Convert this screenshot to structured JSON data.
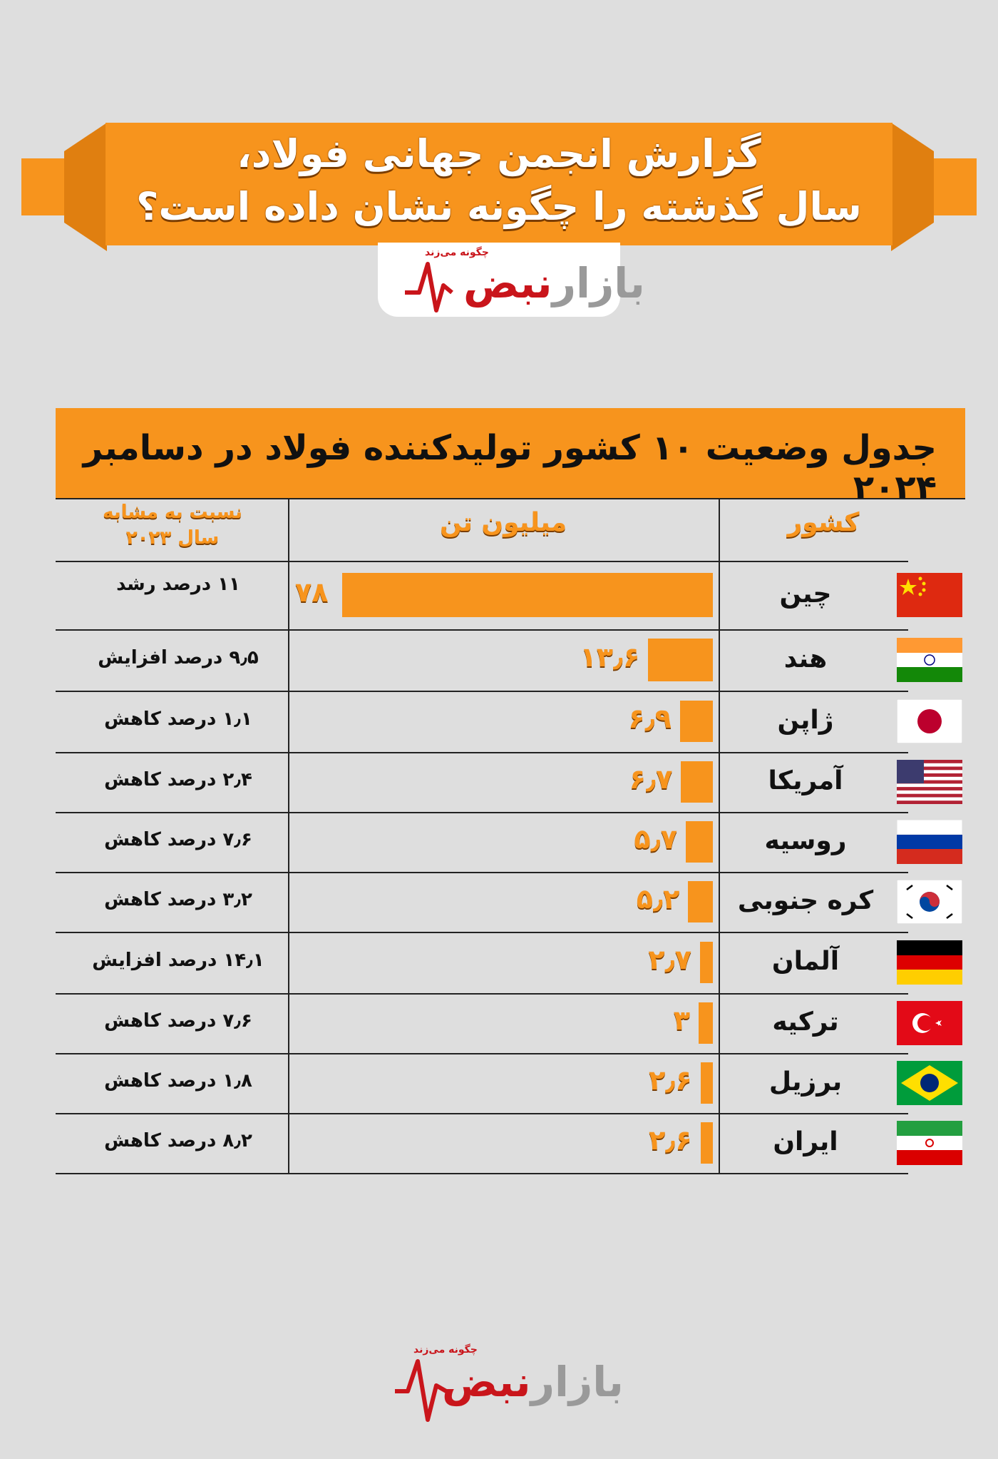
{
  "header": {
    "title_line1": "گزارش انجمن جهانی فولاد،",
    "title_line2": "سال گذشته را چگونه نشان داده است؟"
  },
  "brand": {
    "tagline": "چگونه می‌زند",
    "name_red": "نبض",
    "name_gray": "بازار"
  },
  "table": {
    "title": "جدول وضعیت ۱۰ کشور تولیدکننده فولاد در دسامبر ۲۰۲۴",
    "col_country": "کشور",
    "col_million": "میلیون تن",
    "col_change_line1": "نسبت به مشابه",
    "col_change_line2": "سال ۲۰۲۳"
  },
  "colors": {
    "accent": "#f7941d",
    "background": "#dedede",
    "brand_red": "#c9151b"
  },
  "chart_data": {
    "type": "bar",
    "title": "جدول وضعیت ۱۰ کشور تولیدکننده فولاد در دسامبر ۲۰۲۴",
    "categories": [
      "چین",
      "هند",
      "ژاپن",
      "آمریکا",
      "روسیه",
      "کره جنوبی",
      "آلمان",
      "ترکیه",
      "برزیل",
      "ایران"
    ],
    "values": [
      78,
      13.6,
      6.9,
      6.7,
      5.7,
      5.2,
      2.7,
      3,
      2.6,
      2.6
    ],
    "value_labels": [
      "۷۸",
      "۱۳٫۶",
      "۶٫۹",
      "۶٫۷",
      "۵٫۷",
      "۵٫۲",
      "۲٫۷",
      "۳",
      "۲٫۶",
      "۲٫۶"
    ],
    "change_labels": [
      "۱۱ درصد رشد",
      "۹٫۵ درصد افزایش",
      "۱٫۱ درصد کاهش",
      "۲٫۴ درصد کاهش",
      "۷٫۶ درصد کاهش",
      "۳٫۲ درصد کاهش",
      "۱۴٫۱ درصد افزایش",
      "۷٫۶ درصد کاهش",
      "۱٫۸ درصد کاهش",
      "۸٫۲ درصد کاهش"
    ],
    "flags": [
      "china-flag",
      "india-flag",
      "japan-flag",
      "usa-flag",
      "russia-flag",
      "south-korea-flag",
      "germany-flag",
      "turkey-flag",
      "brazil-flag",
      "iran-flag"
    ],
    "ylabel": "میلیون تن"
  }
}
